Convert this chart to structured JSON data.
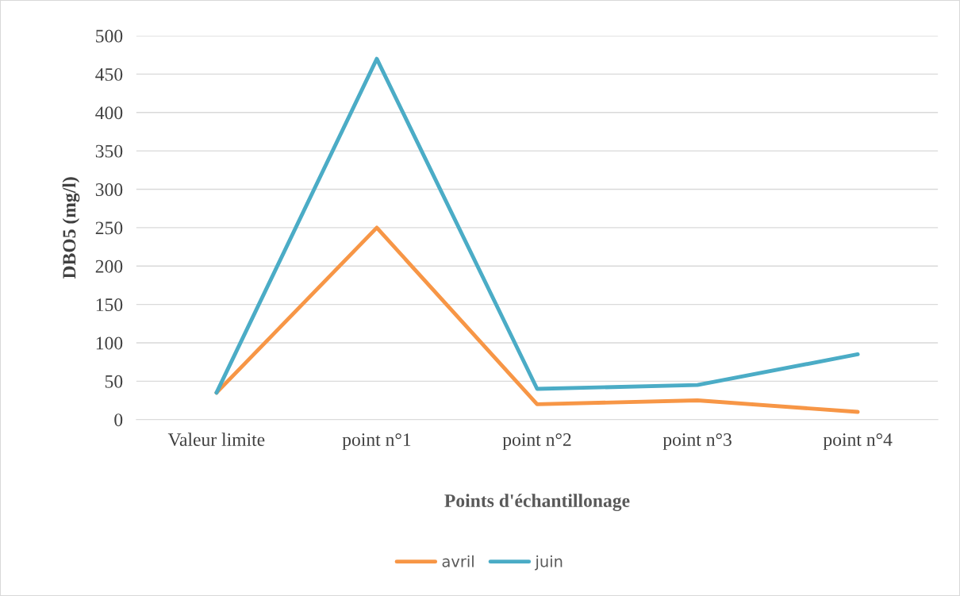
{
  "chart_data": {
    "type": "line",
    "xlabel": "Points d'échantillonage",
    "ylabel": "DBO5 (mg/l)",
    "categories": [
      "Valeur limite",
      "point n°1",
      "point n°2",
      "point n°3",
      "point n°4"
    ],
    "series": [
      {
        "name": "avril",
        "color": "#f79646",
        "values": [
          35,
          250,
          20,
          25,
          10
        ]
      },
      {
        "name": "juin",
        "color": "#4bacc6",
        "values": [
          35,
          470,
          40,
          45,
          85
        ]
      }
    ],
    "ylim": [
      0,
      500
    ],
    "yticks": [
      0,
      50,
      100,
      150,
      200,
      250,
      300,
      350,
      400,
      450,
      500
    ],
    "grid": "y",
    "legend": "bottom",
    "marker": "none",
    "line_style": "solid"
  }
}
